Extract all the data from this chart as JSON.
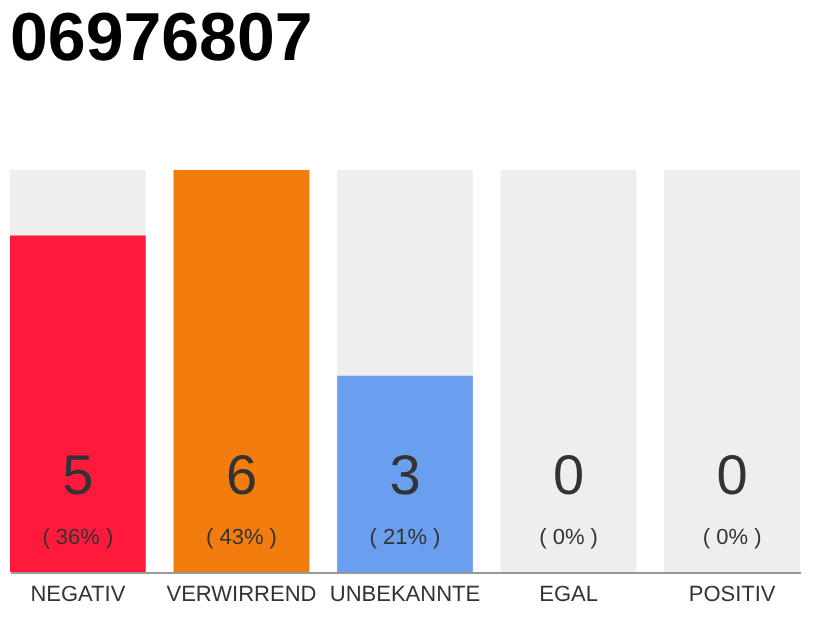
{
  "chart_data": {
    "type": "bar",
    "title": "06976807",
    "categories": [
      "NEGATIV",
      "VERWIRREND",
      "UNBEKANNTE",
      "EGAL",
      "POSITIV"
    ],
    "values": [
      36,
      43,
      21,
      0,
      0
    ],
    "colors": [
      "#ff1a3c",
      "#f27c0e",
      "#6a9fef",
      "#cccccc",
      "#cccccc"
    ],
    "value_labels": [
      "( 36% )",
      "( 43% )",
      "( 21% )",
      "( 0% )",
      "( 0% )"
    ],
    "bands": [
      {
        "axis": "y",
        "from": 0,
        "to": 43
      },
      {
        "axis": "y",
        "from": 0,
        "to": 43
      },
      {
        "axis": "y",
        "from": 0,
        "to": 43
      },
      {
        "axis": "y",
        "from": 0,
        "to": 43
      },
      {
        "axis": "y",
        "from": 0,
        "to": 43
      }
    ],
    "annotations": [
      "5",
      "6",
      "3",
      "0",
      "0"
    ]
  }
}
